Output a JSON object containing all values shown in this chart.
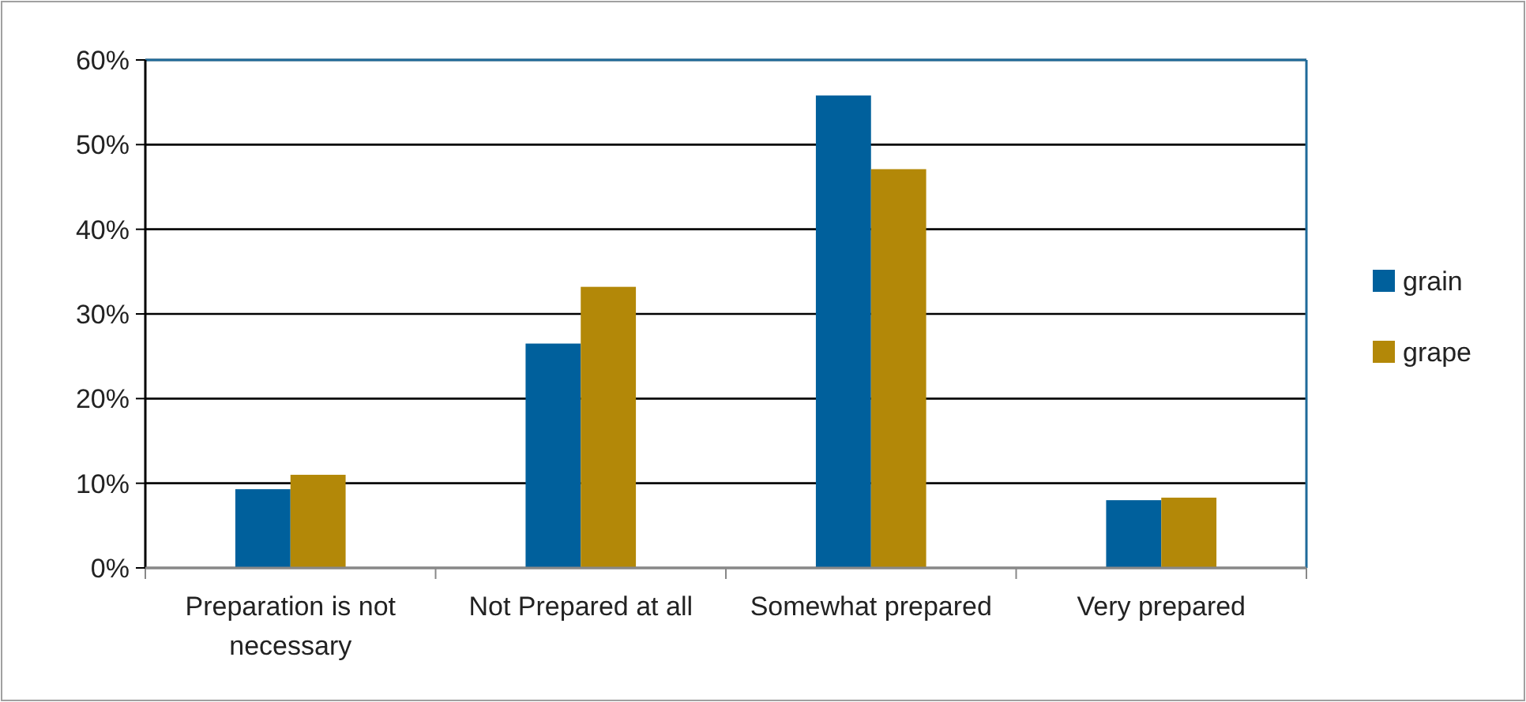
{
  "chart_data": {
    "type": "bar",
    "categories": [
      "Preparation is not necessary",
      "Not Prepared at all",
      "Somewhat prepared",
      "Very prepared"
    ],
    "series": [
      {
        "name": "grain",
        "color": "#00609c",
        "values": [
          9.3,
          26.5,
          55.8,
          8.0
        ]
      },
      {
        "name": "grape",
        "color": "#b38808",
        "values": [
          11.0,
          33.2,
          47.1,
          8.3
        ]
      }
    ],
    "ylim": [
      0,
      60
    ],
    "yticks": [
      {
        "value": 0,
        "label": "0%"
      },
      {
        "value": 10,
        "label": "10%"
      },
      {
        "value": 20,
        "label": "20%"
      },
      {
        "value": 30,
        "label": "30%"
      },
      {
        "value": 40,
        "label": "40%"
      },
      {
        "value": 50,
        "label": "50%"
      },
      {
        "value": 60,
        "label": "60%"
      }
    ],
    "grid": "y",
    "legend": "right"
  }
}
